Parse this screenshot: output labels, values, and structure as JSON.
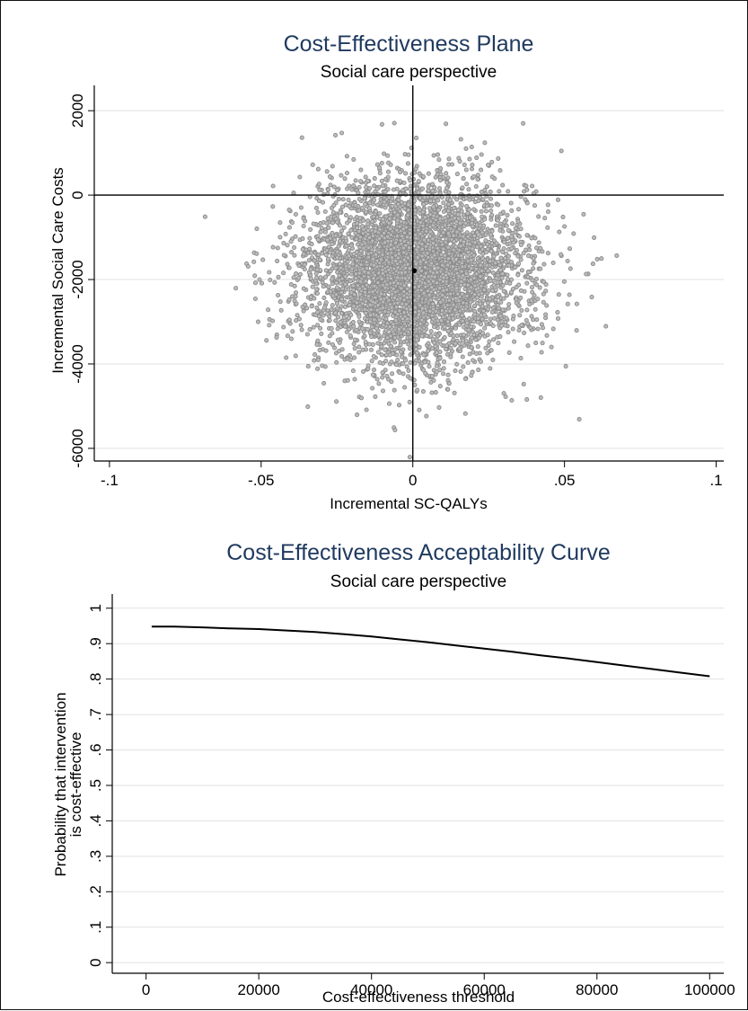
{
  "chart_data": [
    {
      "type": "scatter",
      "title": "Cost-Effectiveness Plane",
      "subtitle": "Social care perspective",
      "xlabel": "Incremental SC-QALYs",
      "ylabel": "Incremental Social Care Costs",
      "xlim": [
        -0.1,
        0.1
      ],
      "ylim": [
        -6000,
        2000
      ],
      "xticks": [
        "-.1",
        "-.05",
        "0",
        ".05",
        ".1"
      ],
      "yticks": [
        "2000",
        "0",
        "-2000",
        "-4000",
        "-6000"
      ],
      "grid": true,
      "point_color": "#8a8a8a",
      "mean_point_color": "#000000",
      "mean_point": {
        "x": 0.0005,
        "y": -1790
      },
      "series": [
        {
          "distribution": "bootstrap replicates",
          "replicates": 5000,
          "x_mean": 0.0005,
          "x_sd": 0.018,
          "y_mean": -1790,
          "y_sd": 1080
        }
      ]
    },
    {
      "type": "line",
      "title": "Cost-Effectiveness Acceptability Curve",
      "subtitle": "Social care perspective",
      "xlabel": "Cost-effectiveness threshold",
      "ylabel_lines": [
        "Probability that intervention",
        "is cost-effective"
      ],
      "xlim": [
        0,
        100000
      ],
      "ylim": [
        0,
        1
      ],
      "xticks": [
        "0",
        "20000",
        "40000",
        "60000",
        "80000",
        "100000"
      ],
      "yticks": [
        "0",
        ".1",
        ".2",
        ".3",
        ".4",
        ".5",
        ".6",
        ".7",
        ".8",
        ".9",
        "1"
      ],
      "grid": true,
      "line_color": "#000000",
      "series": [
        {
          "x": [
            1000,
            5000,
            10000,
            15000,
            20000,
            25000,
            30000,
            35000,
            40000,
            45000,
            50000,
            55000,
            60000,
            65000,
            70000,
            75000,
            80000,
            85000,
            90000,
            95000,
            100000
          ],
          "y": [
            0.948,
            0.948,
            0.946,
            0.943,
            0.941,
            0.937,
            0.933,
            0.927,
            0.92,
            0.912,
            0.904,
            0.895,
            0.886,
            0.877,
            0.867,
            0.858,
            0.848,
            0.838,
            0.828,
            0.818,
            0.808
          ]
        }
      ]
    }
  ]
}
